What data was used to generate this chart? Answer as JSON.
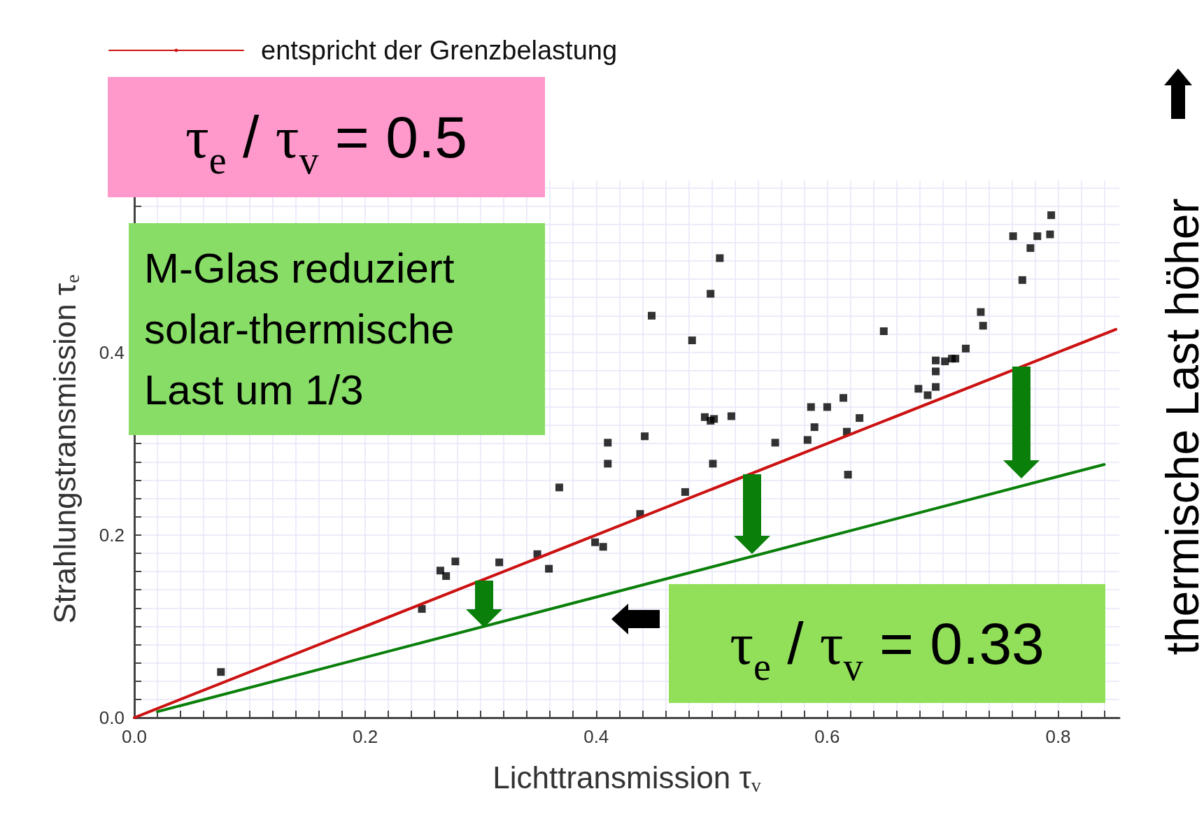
{
  "chart_data": {
    "type": "scatter",
    "xlabel": "Lichttransmission τ$_{v}$",
    "ylabel": "Strahlungstransmission τ$_{e}$",
    "xlim": [
      0,
      0.853
    ],
    "ylim": [
      0,
      0.588
    ],
    "xticks": [
      {
        "value": 0,
        "label": "0.0"
      },
      {
        "value": 0.02,
        "label": null
      },
      {
        "value": 0.04,
        "label": null
      },
      {
        "value": 0.06,
        "label": null
      },
      {
        "value": 0.08,
        "label": null
      },
      {
        "value": 0.1,
        "label": null
      },
      {
        "value": 0.12,
        "label": null
      },
      {
        "value": 0.14,
        "label": null
      },
      {
        "value": 0.16,
        "label": null
      },
      {
        "value": 0.18,
        "label": null
      },
      {
        "value": 0.2,
        "label": "0.2"
      },
      {
        "value": 0.22,
        "label": null
      },
      {
        "value": 0.24,
        "label": null
      },
      {
        "value": 0.26,
        "label": null
      },
      {
        "value": 0.28,
        "label": null
      },
      {
        "value": 0.3,
        "label": null
      },
      {
        "value": 0.32,
        "label": null
      },
      {
        "value": 0.34,
        "label": null
      },
      {
        "value": 0.36,
        "label": null
      },
      {
        "value": 0.38,
        "label": null
      },
      {
        "value": 0.4,
        "label": "0.4"
      },
      {
        "value": 0.42,
        "label": null
      },
      {
        "value": 0.44,
        "label": null
      },
      {
        "value": 0.46,
        "label": null
      },
      {
        "value": 0.48,
        "label": null
      },
      {
        "value": 0.5,
        "label": null
      },
      {
        "value": 0.52,
        "label": null
      },
      {
        "value": 0.54,
        "label": null
      },
      {
        "value": 0.56,
        "label": null
      },
      {
        "value": 0.58,
        "label": null
      },
      {
        "value": 0.6,
        "label": "0.6"
      },
      {
        "value": 0.62,
        "label": null
      },
      {
        "value": 0.64,
        "label": null
      },
      {
        "value": 0.66,
        "label": null
      },
      {
        "value": 0.68,
        "label": null
      },
      {
        "value": 0.7,
        "label": null
      },
      {
        "value": 0.72,
        "label": null
      },
      {
        "value": 0.74,
        "label": null
      },
      {
        "value": 0.76,
        "label": null
      },
      {
        "value": 0.78,
        "label": null
      },
      {
        "value": 0.8,
        "label": "0.8"
      },
      {
        "value": 0.82,
        "label": null
      },
      {
        "value": 0.84,
        "label": null
      }
    ],
    "yticks": [
      {
        "value": 0,
        "label": "0.0"
      },
      {
        "value": 0.02,
        "label": null
      },
      {
        "value": 0.04,
        "label": null
      },
      {
        "value": 0.06,
        "label": null
      },
      {
        "value": 0.08,
        "label": null
      },
      {
        "value": 0.1,
        "label": null
      },
      {
        "value": 0.12,
        "label": null
      },
      {
        "value": 0.14,
        "label": null
      },
      {
        "value": 0.16,
        "label": null
      },
      {
        "value": 0.18,
        "label": null
      },
      {
        "value": 0.2,
        "label": "0.2"
      },
      {
        "value": 0.22,
        "label": null
      },
      {
        "value": 0.24,
        "label": null
      },
      {
        "value": 0.26,
        "label": null
      },
      {
        "value": 0.28,
        "label": null
      },
      {
        "value": 0.3,
        "label": null
      },
      {
        "value": 0.32,
        "label": null
      },
      {
        "value": 0.34,
        "label": null
      },
      {
        "value": 0.36,
        "label": null
      },
      {
        "value": 0.38,
        "label": null
      },
      {
        "value": 0.4,
        "label": "0.4"
      },
      {
        "value": 0.42,
        "label": null
      },
      {
        "value": 0.44,
        "label": null
      },
      {
        "value": 0.46,
        "label": null
      },
      {
        "value": 0.48,
        "label": null
      },
      {
        "value": 0.5,
        "label": null
      },
      {
        "value": 0.52,
        "label": null
      },
      {
        "value": 0.54,
        "label": null
      },
      {
        "value": 0.56,
        "label": null
      },
      {
        "value": 0.58,
        "label": null
      }
    ],
    "grid": true,
    "legend": "top left",
    "marker": "square",
    "series": [
      {
        "type": "scatter",
        "color": "#000000",
        "x": [
          0.075,
          0.249,
          0.265,
          0.27,
          0.278,
          0.316,
          0.349,
          0.359,
          0.368,
          0.399,
          0.406,
          0.41,
          0.41,
          0.438,
          0.442,
          0.448,
          0.477,
          0.483,
          0.494,
          0.499,
          0.499,
          0.502,
          0.501,
          0.507,
          0.517,
          0.555,
          0.583,
          0.586,
          0.589,
          0.6,
          0.614,
          0.617,
          0.618,
          0.628,
          0.649,
          0.679,
          0.687,
          0.694,
          0.694,
          0.694,
          0.702,
          0.708,
          0.711,
          0.72,
          0.733,
          0.735,
          0.761,
          0.769,
          0.776,
          0.782,
          0.793,
          0.794
        ],
        "values": [
          0.05,
          0.119,
          0.161,
          0.155,
          0.171,
          0.17,
          0.179,
          0.163,
          0.252,
          0.192,
          0.187,
          0.278,
          0.301,
          0.223,
          0.308,
          0.44,
          0.247,
          0.413,
          0.329,
          0.464,
          0.325,
          0.327,
          0.278,
          0.503,
          0.33,
          0.301,
          0.304,
          0.34,
          0.318,
          0.34,
          0.35,
          0.313,
          0.266,
          0.328,
          0.423,
          0.36,
          0.353,
          0.362,
          0.379,
          0.391,
          0.39,
          0.393,
          0.393,
          0.404,
          0.444,
          0.429,
          0.527,
          0.479,
          0.514,
          0.527,
          0.529,
          0.55
        ]
      },
      {
        "type": "line",
        "name": "entspricht der Grenzbelastung",
        "color": "#cc1111",
        "marker": "none",
        "x": [
          0,
          0.85
        ],
        "values": [
          0,
          0.425
        ]
      },
      {
        "type": "line",
        "color": "#0a7f0a",
        "marker": "none",
        "x": [
          0.02,
          0.84
        ],
        "values": [
          0.0066,
          0.2772
        ]
      }
    ],
    "annotations": [
      "τ$_{e}$ / τ$_{v}$ = 0.5",
      "M-Glas reduziert\nsolar-thermische\nLast um 1/3",
      "τ$_{e}$ / τ$_{v}$ = 0.33",
      "thermische Last höher"
    ]
  }
}
